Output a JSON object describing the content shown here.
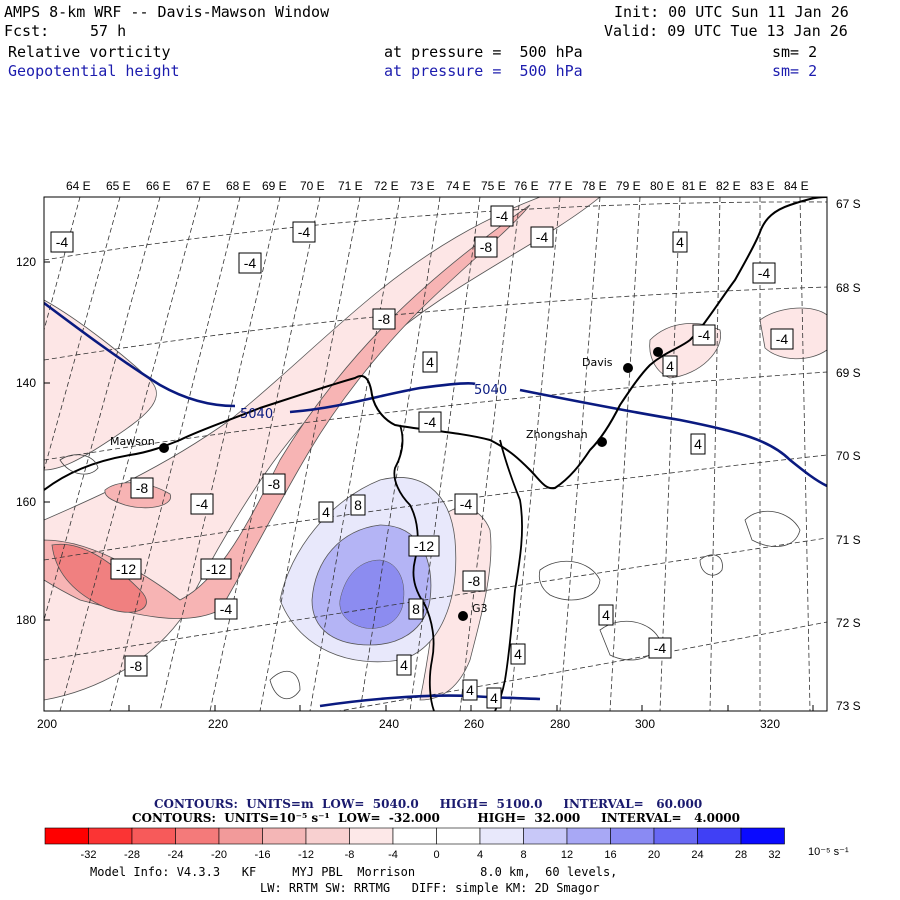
{
  "header": {
    "title": "AMPS 8-km WRF -- Davis-Mawson Window",
    "init": "Init: 00 UTC Sun 11 Jan 26",
    "fcst_label": "Fcst:",
    "fcst_value": "57 h",
    "valid": "Valid: 09 UTC Tue 13 Jan 26",
    "field1": {
      "name": "Relative vorticity",
      "level": "at pressure =  500 hPa",
      "smooth": "sm= 2"
    },
    "field2": {
      "name": "Geopotential height",
      "level": "at pressure =  500 hPa",
      "smooth": "sm= 2"
    }
  },
  "map": {
    "top_lon_labels": [
      "64 E",
      "65 E",
      "66 E",
      "67 E",
      "68 E",
      "69 E",
      "70 E",
      "71 E",
      "72 E",
      "73 E",
      "74 E",
      "75 E",
      "76 E",
      "77 E",
      "78 E",
      "79 E",
      "80 E",
      "81 E",
      "82 E",
      "83 E",
      "84 E"
    ],
    "right_lat_labels": [
      "67 S",
      "68 S",
      "69 S",
      "70 S",
      "71 S",
      "72 S",
      "73 S"
    ],
    "x_grid_labels": [
      "200",
      "220",
      "240",
      "260",
      "280",
      "300",
      "320"
    ],
    "y_grid_labels": [
      "120",
      "140",
      "160",
      "180"
    ],
    "stations": [
      {
        "name": "Mawson"
      },
      {
        "name": "Davis"
      },
      {
        "name": "Zhongshan"
      },
      {
        "name": "G3"
      }
    ],
    "height_contour_labels": [
      "5040",
      "5040"
    ],
    "vort_contour_labels": [
      "-4",
      "-4",
      "-4",
      "-4",
      "-8",
      "-4",
      "4",
      "-8",
      "4",
      "-4",
      "-4",
      "-4",
      "4",
      "-4",
      "4",
      "-8",
      "-4",
      "8",
      "-4",
      "4",
      "-12",
      "-12",
      "-12",
      "-8",
      "-4",
      "8",
      "4",
      "-8",
      "4",
      "4",
      "-8",
      "-4",
      "4",
      "4"
    ],
    "colors": {
      "height": "#0a1a80",
      "coast": "#000000",
      "neg_light": "#fde6e6",
      "neg_mid": "#f7b4b4",
      "neg_strong": "#f08080",
      "pos_light": "#e8e8fb",
      "pos_mid": "#b4b4f5",
      "pos_strong": "#8c8cf0"
    }
  },
  "footer": {
    "contours1": "CONTOURS:  UNITS=m  LOW=  5040.0     HIGH=  5100.0     INTERVAL=   60.000",
    "contours2": "CONTOURS:  UNITS=10⁻⁵ s⁻¹  LOW=  -32.000         HIGH=  32.000     INTERVAL=   4.0000",
    "colorbar_labels": [
      "-32",
      "-28",
      "-24",
      "-20",
      "-16",
      "-12",
      "-8",
      "-4",
      "0",
      "4",
      "8",
      "12",
      "16",
      "20",
      "24",
      "28",
      "32"
    ],
    "colorbar_unit": "10⁻⁵ s⁻¹",
    "colorbar_colors": [
      "#ff0000",
      "#fb3434",
      "#f75a5a",
      "#f47a7a",
      "#f29a9a",
      "#f4b6b6",
      "#f8d0d0",
      "#fde8e8",
      "#ffffff",
      "#ffffff",
      "#e8e8fb",
      "#c8c8f8",
      "#a8a8f5",
      "#8a8af3",
      "#6868f3",
      "#4040f5",
      "#0a0aff"
    ],
    "model_info": "Model Info: V4.3.3   KF     MYJ PBL  Morrison         8.0 km,  60 levels,",
    "model_info2": "LW: RRTM SW: RRTMG   DIFF: simple KM: 2D Smagor"
  }
}
